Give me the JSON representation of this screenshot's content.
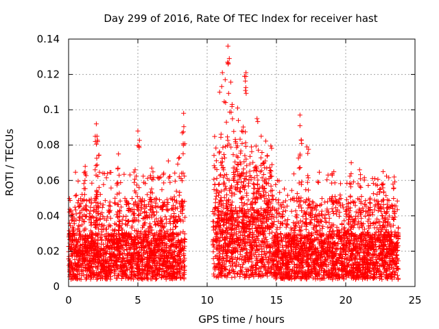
{
  "chart_data": {
    "type": "scatter",
    "title": "Day 299 of 2016, Rate Of TEC Index for receiver hast",
    "xlabel": "GPS time / hours",
    "ylabel": "ROTI / TECUs",
    "xlim": [
      0,
      25
    ],
    "ylim": [
      0,
      0.14
    ],
    "xticks": [
      "0",
      "5",
      "10",
      "15",
      "20",
      "25"
    ],
    "yticks": [
      "0",
      "0.02",
      "0.04",
      "0.06",
      "0.08",
      "0.1",
      "0.12",
      "0.14"
    ],
    "grid": true,
    "marker": "+",
    "color": "#ff0000",
    "data_gap_hours": [
      8.5,
      10.4
    ],
    "series": [
      {
        "name": "ROTI",
        "segments": [
          {
            "x_range": [
              0.0,
              8.4
            ],
            "baseline_range": [
              0.004,
              0.03
            ],
            "typical_max": 0.05
          },
          {
            "x_range": [
              10.4,
              14.8
            ],
            "baseline_range": [
              0.005,
              0.045
            ],
            "typical_max": 0.07
          },
          {
            "x_range": [
              14.8,
              23.8
            ],
            "baseline_range": [
              0.004,
              0.03
            ],
            "typical_max": 0.05
          }
        ],
        "peaks": [
          [
            0.3,
            0.041
          ],
          [
            1.2,
            0.068
          ],
          [
            2.0,
            0.092
          ],
          [
            2.05,
            0.085
          ],
          [
            2.1,
            0.082
          ],
          [
            3.6,
            0.075
          ],
          [
            5.0,
            0.088
          ],
          [
            4.8,
            0.066
          ],
          [
            6.0,
            0.067
          ],
          [
            7.2,
            0.071
          ],
          [
            8.0,
            0.073
          ],
          [
            8.3,
            0.098
          ],
          [
            10.9,
            0.11
          ],
          [
            11.1,
            0.121
          ],
          [
            11.3,
            0.117
          ],
          [
            11.5,
            0.136
          ],
          [
            11.6,
            0.129
          ],
          [
            11.8,
            0.103
          ],
          [
            12.2,
            0.101
          ],
          [
            12.5,
            0.088
          ],
          [
            12.7,
            0.119
          ],
          [
            12.8,
            0.121
          ],
          [
            13.2,
            0.079
          ],
          [
            13.6,
            0.095
          ],
          [
            13.9,
            0.085
          ],
          [
            14.2,
            0.071
          ],
          [
            16.7,
            0.097
          ],
          [
            16.7,
            0.091
          ],
          [
            17.2,
            0.079
          ],
          [
            20.4,
            0.07
          ],
          [
            21.0,
            0.066
          ],
          [
            22.7,
            0.065
          ],
          [
            23.5,
            0.062
          ]
        ]
      }
    ]
  }
}
